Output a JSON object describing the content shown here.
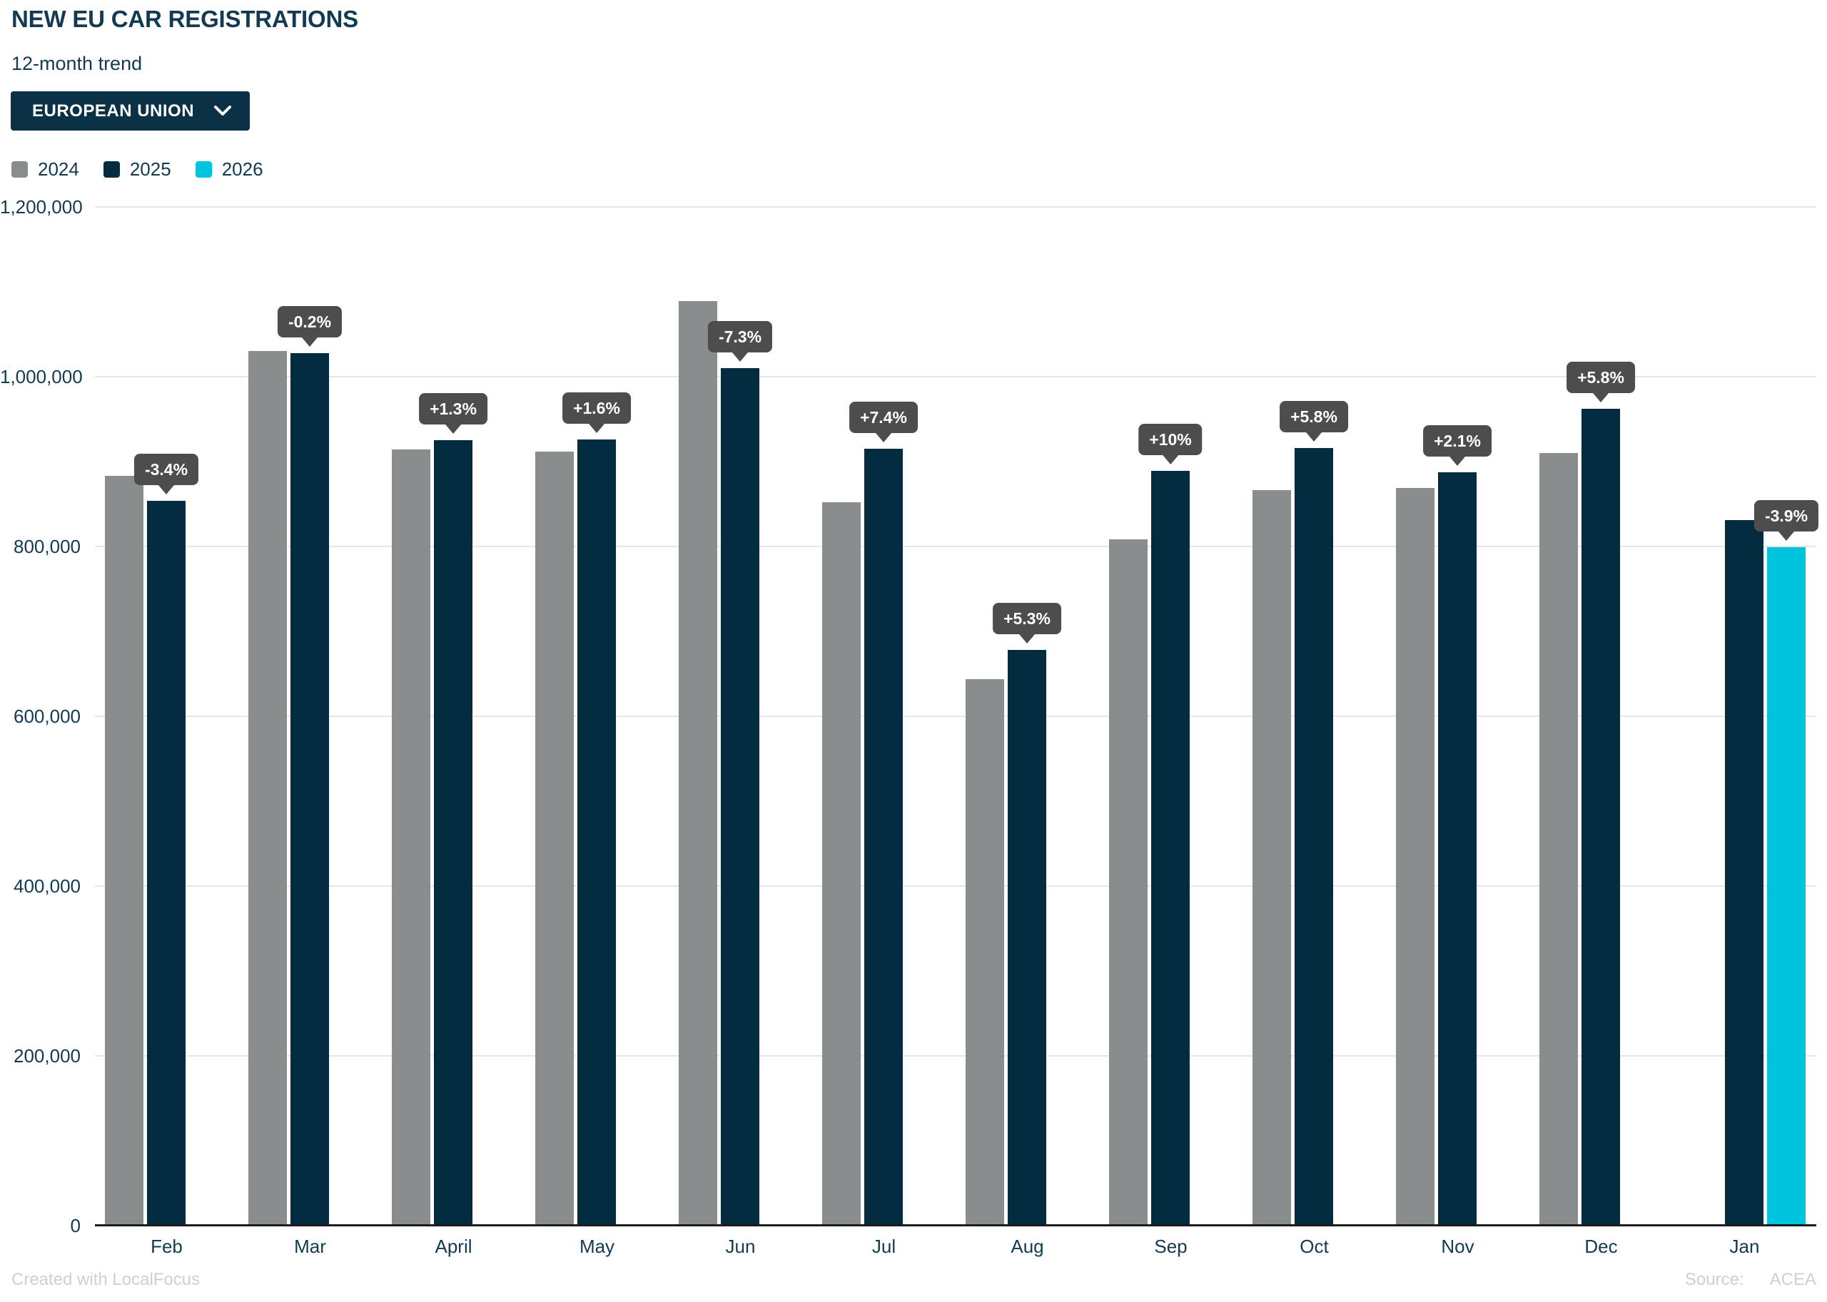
{
  "header": {
    "title": "NEW EU CAR REGISTRATIONS",
    "subtitle": "12-month trend",
    "region_selector": {
      "label": "EUROPEAN UNION",
      "icon": "chevron-down-icon"
    }
  },
  "legend": [
    {
      "label": "2024",
      "color": "#8a8d8d"
    },
    {
      "label": "2025",
      "color": "#032c40"
    },
    {
      "label": "2026",
      "color": "#00c3de"
    }
  ],
  "footer": {
    "credit": "Created with LocalFocus",
    "source_label": "Source:",
    "source_value": "ACEA"
  },
  "colors": {
    "text_navy": "#123a51",
    "button_bg": "#0b3146",
    "tooltip_bg": "#4d4d4d",
    "gridline": "#e6e6e6",
    "baseline": "#1c1c1c",
    "footer_text": "#cfcfcf"
  },
  "chart_data": {
    "type": "bar",
    "title": "NEW EU CAR REGISTRATIONS",
    "subtitle": "12-month trend",
    "categories": [
      "Feb",
      "Mar",
      "April",
      "May",
      "Jun",
      "Jul",
      "Aug",
      "Sep",
      "Oct",
      "Nov",
      "Dec",
      "Jan"
    ],
    "series": [
      {
        "name": "2024",
        "color": "#8a8d8d",
        "values": [
          883000,
          1030000,
          914000,
          912000,
          1089000,
          852000,
          644000,
          808000,
          866000,
          869000,
          910000,
          null
        ]
      },
      {
        "name": "2025",
        "color": "#032c40",
        "values": [
          854000,
          1028000,
          925000,
          926000,
          1010000,
          915000,
          678000,
          889000,
          916000,
          887000,
          962000,
          831000
        ]
      },
      {
        "name": "2026",
        "color": "#00c3de",
        "values": [
          null,
          null,
          null,
          null,
          null,
          null,
          null,
          null,
          null,
          null,
          null,
          799000
        ]
      }
    ],
    "change_labels": [
      "-3.4%",
      "-0.2%",
      "+1.3%",
      "+1.6%",
      "-7.3%",
      "+7.4%",
      "+5.3%",
      "+10%",
      "+5.8%",
      "+2.1%",
      "+5.8%",
      "-3.9%"
    ],
    "xlabel": "",
    "ylabel": "",
    "ylim": [
      0,
      1200000
    ],
    "yticks": [
      "1,200,000",
      "1,000,000",
      "800,000",
      "600,000",
      "400,000",
      "200,000",
      "0"
    ],
    "grid": true,
    "legend_position": "top-left"
  }
}
